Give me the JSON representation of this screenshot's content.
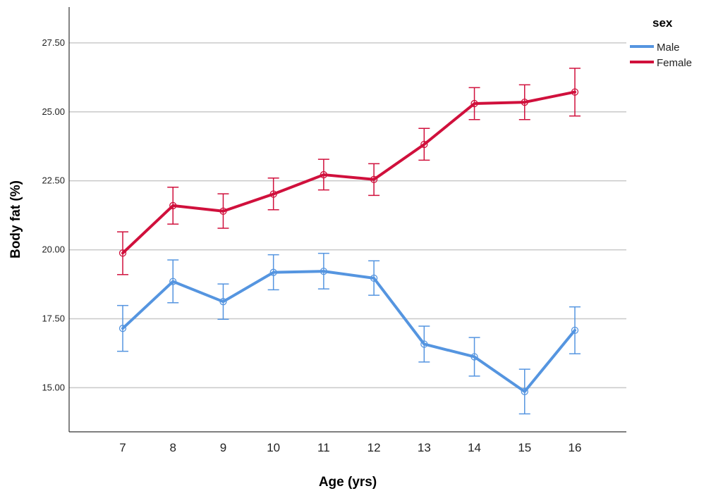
{
  "chart_data": {
    "type": "line",
    "xlabel": "Age (yrs)",
    "ylabel": "Body fat (%)",
    "x": [
      7,
      8,
      9,
      10,
      11,
      12,
      13,
      14,
      15,
      16
    ],
    "x_tick_labels": [
      "7",
      "8",
      "9",
      "10",
      "11",
      "12",
      "13",
      "14",
      "15",
      "16"
    ],
    "y_ticks": [
      15.0,
      17.5,
      20.0,
      22.5,
      25.0,
      27.5
    ],
    "y_tick_labels": [
      "15.00",
      "17.50",
      "20.00",
      "22.50",
      "25.00",
      "27.50"
    ],
    "ylim": [
      13.4,
      28.8
    ],
    "grid": "horizontal",
    "legend": {
      "title": "sex",
      "position": "top-right"
    },
    "series": [
      {
        "name": "Male",
        "color": "#5595E0",
        "values": [
          17.15,
          18.85,
          18.12,
          19.18,
          19.22,
          18.97,
          16.58,
          16.12,
          14.86,
          17.08
        ],
        "error_low": [
          16.32,
          18.08,
          17.48,
          18.55,
          18.58,
          18.35,
          15.93,
          15.42,
          14.05,
          16.23
        ],
        "error_high": [
          17.98,
          19.63,
          18.76,
          19.82,
          19.87,
          19.6,
          17.23,
          16.82,
          15.67,
          17.93
        ]
      },
      {
        "name": "Female",
        "color": "#D0103C",
        "values": [
          19.88,
          21.6,
          21.4,
          22.02,
          22.72,
          22.55,
          23.82,
          25.3,
          25.35,
          25.72
        ],
        "error_low": [
          19.1,
          20.93,
          20.78,
          21.45,
          22.17,
          21.97,
          23.25,
          24.72,
          24.72,
          24.85
        ],
        "error_high": [
          20.65,
          22.27,
          22.03,
          22.6,
          23.28,
          23.12,
          24.4,
          25.88,
          25.98,
          26.58
        ]
      }
    ]
  }
}
